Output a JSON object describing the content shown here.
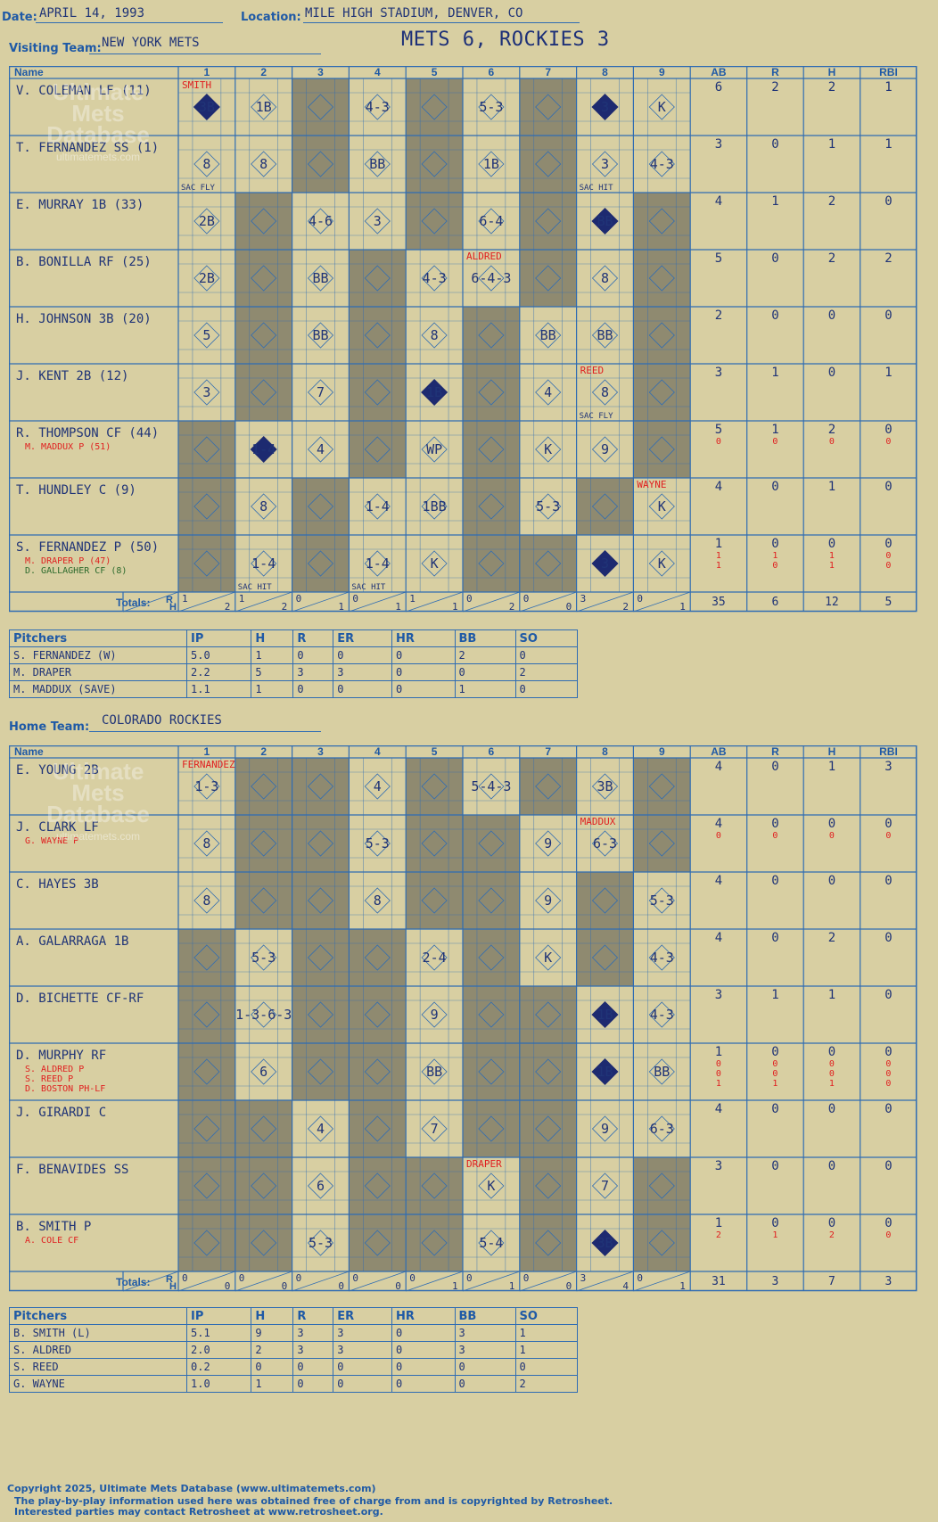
{
  "header": {
    "date_label": "Date:",
    "date": "APRIL 14, 1993",
    "location_label": "Location:",
    "location": "MILE HIGH STADIUM, DENVER, CO",
    "visiting_label": "Visiting Team:",
    "visiting_team": "NEW YORK METS",
    "result": "METS 6, ROCKIES 3",
    "home_label": "Home Team:",
    "home_team": "COLORADO ROCKIES"
  },
  "watermark": [
    "Ultimate",
    "Mets",
    "Database",
    "ultimatemets.com"
  ],
  "columns": {
    "name": "Name",
    "innings": [
      "1",
      "2",
      "3",
      "4",
      "5",
      "6",
      "7",
      "8",
      "9"
    ],
    "stats": [
      "AB",
      "R",
      "H",
      "RBI"
    ]
  },
  "totals_label": "Totals:",
  "rh_labels": [
    "R",
    "H"
  ],
  "visiting": {
    "batters": [
      {
        "name": "V. COLEMAN LF (11)",
        "subs": [],
        "cells": {
          "1": "3B",
          "2": "1B",
          "4": "4-3",
          "6": "5-3",
          "8": "3",
          "9": "K"
        },
        "marks": {
          "1": "SMITH"
        },
        "dark": [
          3,
          5,
          7
        ],
        "scored": [
          1,
          8
        ],
        "stats": [
          [
            "6",
            "2",
            "2",
            "1"
          ]
        ]
      },
      {
        "name": "T. FERNANDEZ SS (1)",
        "subs": [],
        "cells": {
          "1": "8",
          "2": "8",
          "4": "BB",
          "6": "1B",
          "8": "3",
          "9": "4-3"
        },
        "notes": {
          "1": "SAC FLY",
          "8": "SAC HIT"
        },
        "dark": [
          3,
          5,
          7
        ],
        "scored": [],
        "stats": [
          [
            "3",
            "0",
            "1",
            "1"
          ]
        ]
      },
      {
        "name": "E. MURRAY 1B (33)",
        "subs": [],
        "cells": {
          "1": "2B",
          "3": "4-6",
          "4": "3",
          "6": "6-4",
          "8": "BB"
        },
        "dark": [
          2,
          5,
          7,
          9
        ],
        "scored": [
          8
        ],
        "stats": [
          [
            "4",
            "1",
            "2",
            "0"
          ]
        ]
      },
      {
        "name": "B. BONILLA RF (25)",
        "subs": [],
        "cells": {
          "1": "2B",
          "3": "BB",
          "5": "4-3",
          "6": "6-4-3",
          "8": "8"
        },
        "marks": {
          "6": "ALDRED"
        },
        "dark": [
          2,
          4,
          7,
          9
        ],
        "scored": [],
        "stats": [
          [
            "5",
            "0",
            "2",
            "2"
          ]
        ]
      },
      {
        "name": "H. JOHNSON 3B (20)",
        "subs": [],
        "cells": {
          "1": "5",
          "3": "BB",
          "5": "8",
          "7": "BB",
          "8": "BB"
        },
        "dark": [
          2,
          4,
          6,
          9
        ],
        "scored": [],
        "stats": [
          [
            "2",
            "0",
            "0",
            "0"
          ]
        ]
      },
      {
        "name": "J. KENT 2B (12)",
        "subs": [],
        "cells": {
          "1": "3",
          "3": "7",
          "5": "1B",
          "7": "4",
          "8": "8"
        },
        "marks": {
          "8": "REED"
        },
        "notes": {
          "8": "SAC FLY"
        },
        "dark": [
          2,
          4,
          6,
          9
        ],
        "scored": [
          5
        ],
        "stats": [
          [
            "3",
            "1",
            "0",
            "1"
          ]
        ]
      },
      {
        "name": "R. THOMPSON CF (44)",
        "subs": [
          "M. MADDUX P (51)"
        ],
        "cells": {
          "2": "1-4",
          "3": "4",
          "5": "WP",
          "7": "K",
          "8": "9"
        },
        "dark": [
          1,
          4,
          6,
          9
        ],
        "scored": [
          2
        ],
        "stats": [
          [
            "5",
            "1",
            "2",
            "0"
          ],
          [
            "0",
            "0",
            "0",
            "0"
          ]
        ]
      },
      {
        "name": "T. HUNDLEY C (9)",
        "subs": [],
        "cells": {
          "2": "8",
          "4": "1-4",
          "5": "1BB",
          "7": "5-3",
          "9": "K"
        },
        "marks": {
          "9": "WAYNE"
        },
        "dark": [
          1,
          3,
          6,
          8
        ],
        "scored": [],
        "stats": [
          [
            "4",
            "0",
            "1",
            "0"
          ]
        ]
      },
      {
        "name": "S. FERNANDEZ P (50)",
        "subs": [
          "M. DRAPER P (47)",
          "D. GALLAGHER CF (8)"
        ],
        "cells": {
          "2": "1-4",
          "4": "1-4",
          "5": "K",
          "8": "3",
          "9": "K"
        },
        "notes": {
          "2": "SAC HIT",
          "4": "SAC HIT"
        },
        "dark": [
          1,
          3,
          6,
          7
        ],
        "scored": [
          8
        ],
        "stats": [
          [
            "1",
            "0",
            "0",
            "0"
          ],
          [
            "1",
            "1",
            "1",
            "0"
          ],
          [
            "1",
            "0",
            "1",
            "0"
          ]
        ]
      }
    ],
    "inning_totals": [
      [
        "1",
        "2"
      ],
      [
        "1",
        "2"
      ],
      [
        "0",
        "1"
      ],
      [
        "0",
        "1"
      ],
      [
        "1",
        "1"
      ],
      [
        "0",
        "2"
      ],
      [
        "0",
        "0"
      ],
      [
        "3",
        "2"
      ],
      [
        "0",
        "1"
      ]
    ],
    "stat_totals": [
      "35",
      "6",
      "12",
      "5"
    ],
    "pitchers_header": [
      "Pitchers",
      "IP",
      "H",
      "R",
      "ER",
      "HR",
      "BB",
      "SO"
    ],
    "pitchers": [
      [
        "S. FERNANDEZ (W)",
        "5.0",
        "1",
        "0",
        "0",
        "0",
        "2",
        "0"
      ],
      [
        "M. DRAPER",
        "2.2",
        "5",
        "3",
        "3",
        "0",
        "0",
        "2"
      ],
      [
        "M. MADDUX (SAVE)",
        "1.1",
        "1",
        "0",
        "0",
        "0",
        "1",
        "0"
      ]
    ]
  },
  "home": {
    "batters": [
      {
        "name": "E. YOUNG 2B",
        "subs": [],
        "cells": {
          "1": "1-3",
          "4": "4",
          "6": "5-4-3",
          "8": "3B"
        },
        "marks": {
          "1": "FERNANDEZ"
        },
        "dark": [
          2,
          3,
          5,
          7,
          9
        ],
        "scored": [],
        "stats": [
          [
            "4",
            "0",
            "1",
            "3"
          ]
        ]
      },
      {
        "name": "J. CLARK LF",
        "subs": [
          "G. WAYNE P"
        ],
        "cells": {
          "1": "8",
          "4": "5-3",
          "7": "9",
          "8": "6-3"
        },
        "marks": {
          "8": "MADDUX"
        },
        "dark": [
          2,
          3,
          5,
          6,
          9
        ],
        "scored": [],
        "stats": [
          [
            "4",
            "0",
            "0",
            "0"
          ],
          [
            "0",
            "0",
            "0",
            "0"
          ]
        ]
      },
      {
        "name": "C. HAYES 3B",
        "subs": [],
        "cells": {
          "1": "8",
          "4": "8",
          "7": "9",
          "9": "5-3"
        },
        "dark": [
          2,
          3,
          5,
          6,
          8
        ],
        "scored": [],
        "stats": [
          [
            "4",
            "0",
            "0",
            "0"
          ]
        ]
      },
      {
        "name": "A. GALARRAGA 1B",
        "subs": [],
        "cells": {
          "2": "5-3",
          "5": "2-4",
          "7": "K",
          "9": "4-3"
        },
        "dark": [
          1,
          3,
          4,
          6,
          8
        ],
        "scored": [],
        "stats": [
          [
            "4",
            "0",
            "2",
            "0"
          ]
        ]
      },
      {
        "name": "D. BICHETTE CF-RF",
        "subs": [],
        "cells": {
          "2": "1-3-6-3",
          "5": "9",
          "8": "1B",
          "9": "4-3"
        },
        "dark": [
          1,
          3,
          4,
          6,
          7
        ],
        "scored": [
          8
        ],
        "stats": [
          [
            "3",
            "1",
            "1",
            "0"
          ]
        ]
      },
      {
        "name": "D. MURPHY RF",
        "subs": [
          "S. ALDRED P",
          "S. REED P",
          "D. BOSTON PH-LF"
        ],
        "cells": {
          "2": "6",
          "5": "BB",
          "8": "1B",
          "9": "BB"
        },
        "dark": [
          1,
          3,
          4,
          6,
          7
        ],
        "scored": [
          8
        ],
        "stats": [
          [
            "1",
            "0",
            "0",
            "0"
          ],
          [
            "0",
            "0",
            "0",
            "0"
          ],
          [
            "0",
            "0",
            "0",
            "0"
          ],
          [
            "1",
            "1",
            "1",
            "0"
          ]
        ]
      },
      {
        "name": "J. GIRARDI C",
        "subs": [],
        "cells": {
          "3": "4",
          "5": "7",
          "8": "9",
          "9": "6-3"
        },
        "dark": [
          1,
          2,
          4,
          6,
          7
        ],
        "scored": [],
        "stats": [
          [
            "4",
            "0",
            "0",
            "0"
          ]
        ]
      },
      {
        "name": "F. BENAVIDES SS",
        "subs": [],
        "cells": {
          "3": "6",
          "6": "K",
          "8": "7"
        },
        "marks": {
          "6": "DRAPER"
        },
        "dark": [
          1,
          2,
          4,
          5,
          7,
          9
        ],
        "scored": [],
        "stats": [
          [
            "3",
            "0",
            "0",
            "0"
          ]
        ]
      },
      {
        "name": "B. SMITH P",
        "subs": [
          "A. COLE CF"
        ],
        "cells": {
          "3": "5-3",
          "6": "5-4",
          "8": "3B"
        },
        "dark": [
          1,
          2,
          4,
          5,
          7,
          9
        ],
        "scored": [
          8
        ],
        "stats": [
          [
            "1",
            "0",
            "0",
            "0"
          ],
          [
            "2",
            "1",
            "2",
            "0"
          ]
        ]
      }
    ],
    "inning_totals": [
      [
        "0",
        "0"
      ],
      [
        "0",
        "0"
      ],
      [
        "0",
        "0"
      ],
      [
        "0",
        "0"
      ],
      [
        "0",
        "1"
      ],
      [
        "0",
        "1"
      ],
      [
        "0",
        "0"
      ],
      [
        "3",
        "4"
      ],
      [
        "0",
        "1"
      ]
    ],
    "stat_totals": [
      "31",
      "3",
      "7",
      "3"
    ],
    "pitchers_header": [
      "Pitchers",
      "IP",
      "H",
      "R",
      "ER",
      "HR",
      "BB",
      "SO"
    ],
    "pitchers": [
      [
        "B. SMITH (L)",
        "5.1",
        "9",
        "3",
        "3",
        "0",
        "3",
        "1"
      ],
      [
        "S. ALDRED",
        "2.0",
        "2",
        "3",
        "3",
        "0",
        "3",
        "1"
      ],
      [
        "S. REED",
        "0.2",
        "0",
        "0",
        "0",
        "0",
        "0",
        "0"
      ],
      [
        "G. WAYNE",
        "1.0",
        "1",
        "0",
        "0",
        "0",
        "0",
        "2"
      ]
    ]
  },
  "footer": [
    "Copyright 2025, Ultimate Mets Database (www.ultimatemets.com)",
    "The play-by-play information used here was obtained free of charge from and is copyrighted by Retrosheet.",
    "Interested parties may contact Retrosheet at www.retrosheet.org."
  ],
  "colors": {
    "background": "#d8cfa2",
    "grid": "#2f6cb3",
    "dark_cell": "#8f8a70",
    "ink": "#203477",
    "mark_red": "#e02020",
    "run_blue": "#1d2a70",
    "run_red": "#9a1c24"
  }
}
